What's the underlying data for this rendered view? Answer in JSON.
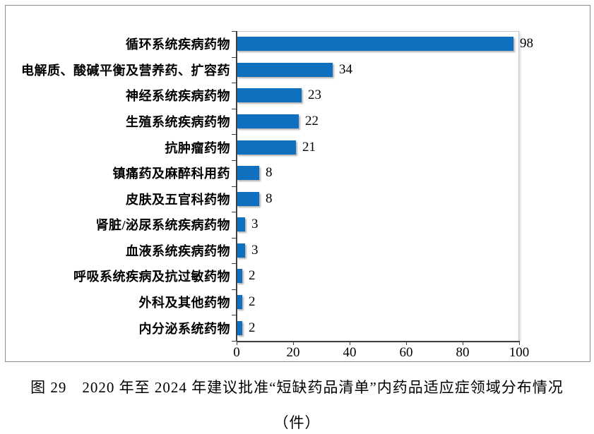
{
  "figure": {
    "caption_line1": "图 29　2020 年至 2024 年建议批准“短缺药品清单”内药品适应症领域分布情况",
    "caption_line2": "（件）"
  },
  "chart_data": {
    "type": "bar",
    "orientation": "horizontal",
    "title": "",
    "categories": [
      "循环系统疾病药物",
      "电解质、酸碱平衡及营养药、扩容药",
      "神经系统疾病药物",
      "生殖系统疾病药物",
      "抗肿瘤药物",
      "镇痛药及麻醉科用药",
      "皮肤及五官科药物",
      "肾脏/泌尿系统疾病药物",
      "血液系统疾病药物",
      "呼吸系统疾病及抗过敏药物",
      "外科及其他药物",
      "内分泌系统药物"
    ],
    "values": [
      98,
      34,
      23,
      22,
      21,
      8,
      8,
      3,
      3,
      2,
      2,
      2
    ],
    "x_ticks": [
      0,
      20,
      40,
      60,
      80,
      100
    ],
    "xlim": [
      0,
      100
    ],
    "xlabel": "件",
    "ylabel": "",
    "grid": false,
    "legend": false,
    "value_labels": true,
    "bar_color": "#1070C0",
    "axis_color": "#404040",
    "text_color": "#000000"
  }
}
